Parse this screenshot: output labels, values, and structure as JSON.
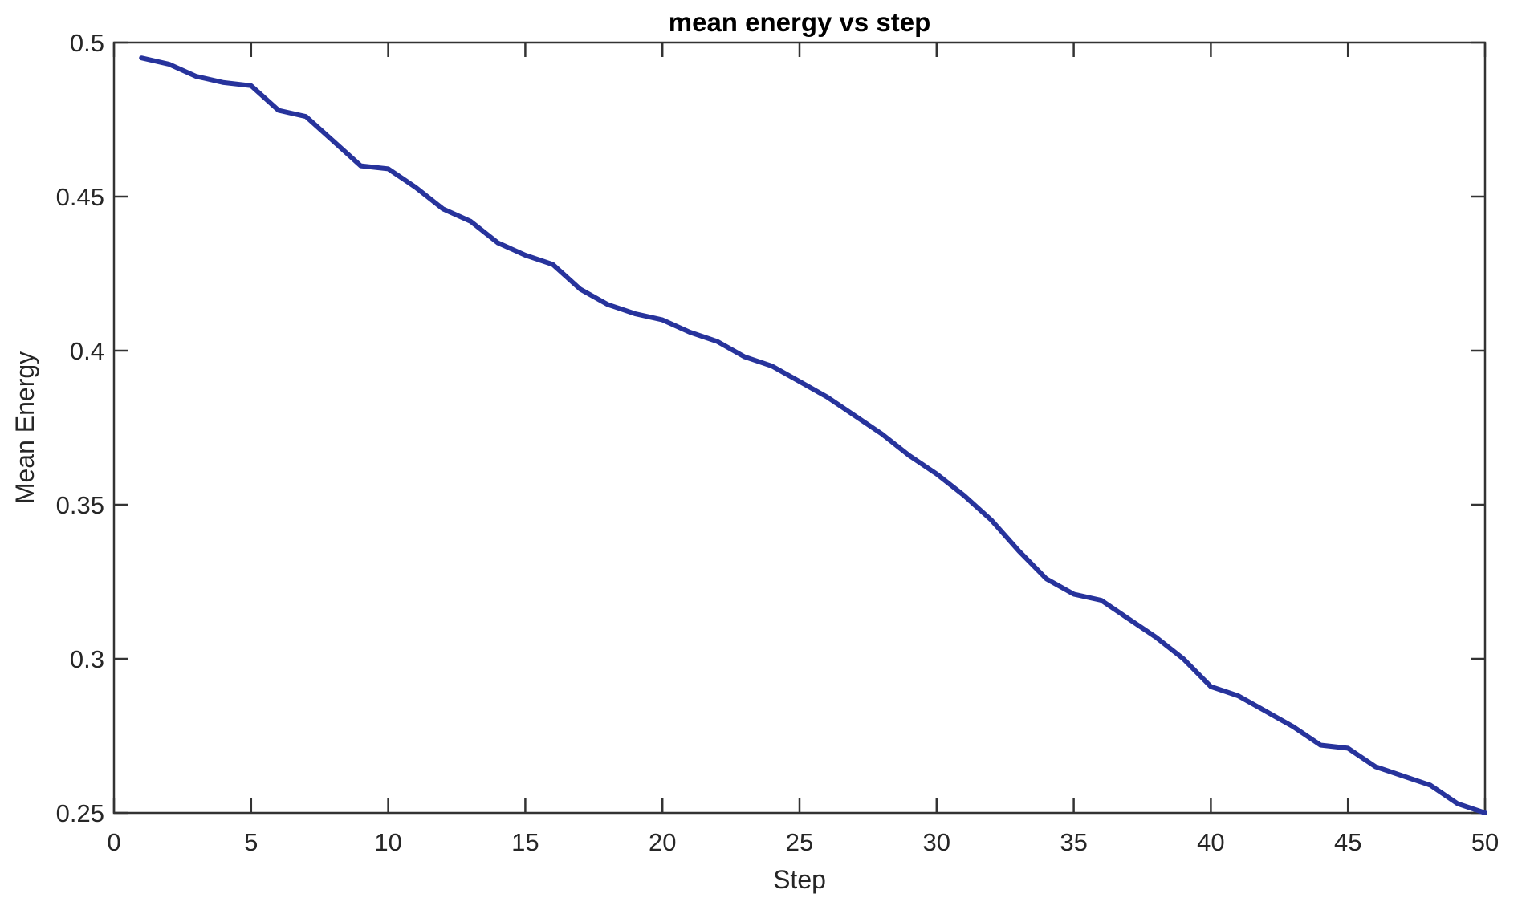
{
  "chart_data": {
    "type": "line",
    "title": "mean energy vs step",
    "xlabel": "Step",
    "ylabel": "Mean Energy",
    "xlim": [
      0,
      50
    ],
    "ylim": [
      0.25,
      0.5
    ],
    "grid": false,
    "legend": "none",
    "box": "on",
    "tick_direction": "in",
    "xticks": {
      "values": [
        0,
        5,
        10,
        15,
        20,
        25,
        30,
        35,
        40,
        45,
        50
      ],
      "labels": [
        "0",
        "5",
        "10",
        "15",
        "20",
        "25",
        "30",
        "35",
        "40",
        "45",
        "50"
      ]
    },
    "yticks": {
      "values": [
        0.25,
        0.3,
        0.35,
        0.4,
        0.45,
        0.5
      ],
      "labels": [
        "0.25",
        "0.3",
        "0.35",
        "0.4",
        "0.45",
        "0.5"
      ]
    },
    "series": [
      {
        "name": "mean energy",
        "x": [
          1,
          2,
          3,
          4,
          5,
          6,
          7,
          8,
          9,
          10,
          11,
          12,
          13,
          14,
          15,
          16,
          17,
          18,
          19,
          20,
          21,
          22,
          23,
          24,
          25,
          26,
          27,
          28,
          29,
          30,
          31,
          32,
          33,
          34,
          35,
          36,
          37,
          38,
          39,
          40,
          41,
          42,
          43,
          44,
          45,
          46,
          47,
          48,
          49,
          50
        ],
        "values": [
          0.495,
          0.493,
          0.489,
          0.487,
          0.486,
          0.478,
          0.476,
          0.468,
          0.46,
          0.459,
          0.453,
          0.446,
          0.442,
          0.435,
          0.431,
          0.428,
          0.42,
          0.415,
          0.412,
          0.41,
          0.406,
          0.403,
          0.398,
          0.395,
          0.39,
          0.385,
          0.379,
          0.373,
          0.366,
          0.36,
          0.353,
          0.345,
          0.335,
          0.326,
          0.321,
          0.319,
          0.313,
          0.307,
          0.3,
          0.291,
          0.288,
          0.283,
          0.278,
          0.272,
          0.271,
          0.265,
          0.262,
          0.259,
          0.253,
          0.25
        ]
      }
    ]
  },
  "colors": {
    "line": "#27339c",
    "axis": "#333333",
    "tick_text": "#262626",
    "title_text": "#000000",
    "background": "#ffffff"
  }
}
